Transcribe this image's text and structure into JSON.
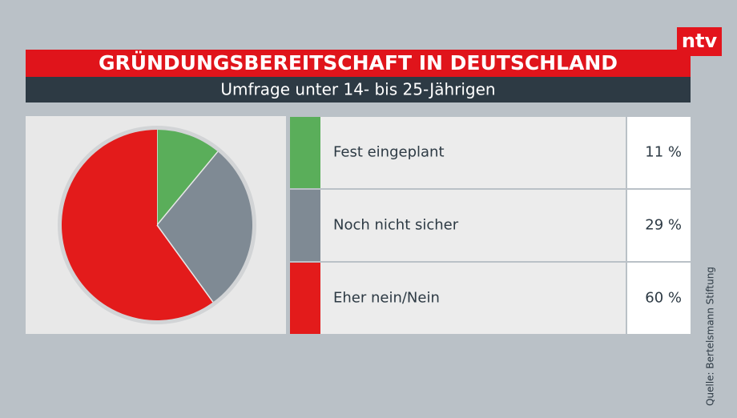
{
  "logo": "ntv",
  "source": "Quelle: Bertelsmann Stiftung",
  "chart_data": {
    "type": "pie",
    "title": "GRÜNDUNGSBEREITSCHAFT IN DEUTSCHLAND",
    "subtitle": "Umfrage unter 14- bis 25-Jährigen",
    "categories": [
      "Fest eingeplant",
      "Noch nicht sicher",
      "Eher nein/Nein"
    ],
    "values": [
      11,
      29,
      60
    ],
    "value_labels": [
      "11 %",
      "29 %",
      "60 %"
    ],
    "colors": [
      "#5aae5a",
      "#7f8a94",
      "#e31b1b"
    ]
  }
}
